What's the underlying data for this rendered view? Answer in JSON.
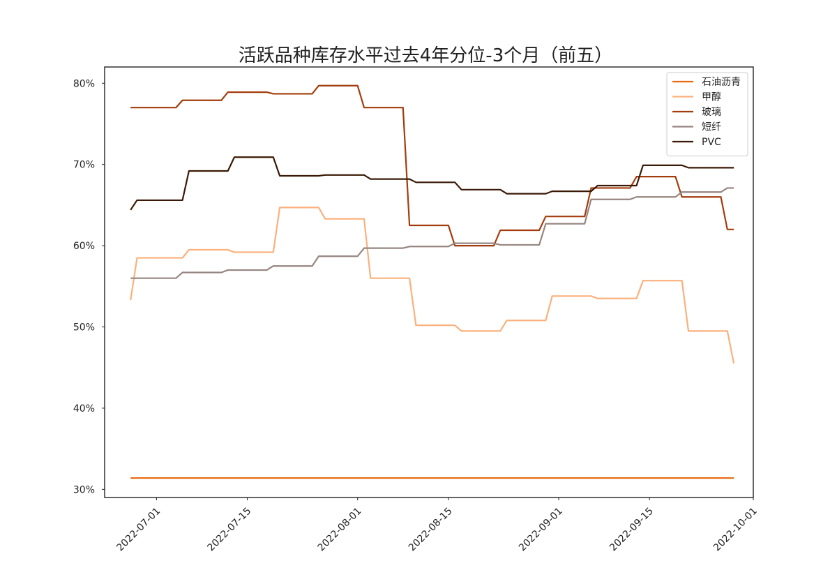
{
  "chart_data": {
    "type": "line",
    "title": "活跃品种库存水平过去4年分位-3个月（前五）",
    "xlabel": "",
    "ylabel": "",
    "x_range": [
      "2022-06-23",
      "2022-10-01"
    ],
    "ylim": [
      0.29,
      0.82
    ],
    "x_ticks": [
      {
        "date": "2022-07-01",
        "label": "2022-07-01"
      },
      {
        "date": "2022-07-15",
        "label": "2022-07-15"
      },
      {
        "date": "2022-08-01",
        "label": "2022-08-01"
      },
      {
        "date": "2022-08-15",
        "label": "2022-08-15"
      },
      {
        "date": "2022-09-01",
        "label": "2022-09-01"
      },
      {
        "date": "2022-09-15",
        "label": "2022-09-15"
      },
      {
        "date": "2022-10-01",
        "label": "2022-10-01"
      }
    ],
    "y_ticks": [
      {
        "value": 0.3,
        "label": "30%"
      },
      {
        "value": 0.4,
        "label": "40%"
      },
      {
        "value": 0.5,
        "label": "50%"
      },
      {
        "value": 0.6,
        "label": "60%"
      },
      {
        "value": 0.7,
        "label": "70%"
      },
      {
        "value": 0.8,
        "label": "80%"
      }
    ],
    "grid": false,
    "legend": "top-right",
    "series": [
      {
        "name": "石油沥青",
        "color": "#e86a10",
        "points": [
          [
            "2022-06-27",
            0.314
          ],
          [
            "2022-09-28",
            0.314
          ]
        ]
      },
      {
        "name": "甲醇",
        "color": "#fbb07c",
        "points": [
          [
            "2022-06-27",
            0.533
          ],
          [
            "2022-06-28",
            0.585
          ],
          [
            "2022-07-05",
            0.585
          ],
          [
            "2022-07-06",
            0.595
          ],
          [
            "2022-07-12",
            0.595
          ],
          [
            "2022-07-13",
            0.592
          ],
          [
            "2022-07-19",
            0.592
          ],
          [
            "2022-07-20",
            0.647
          ],
          [
            "2022-07-26",
            0.647
          ],
          [
            "2022-07-27",
            0.633
          ],
          [
            "2022-08-02",
            0.633
          ],
          [
            "2022-08-03",
            0.56
          ],
          [
            "2022-08-09",
            0.56
          ],
          [
            "2022-08-10",
            0.502
          ],
          [
            "2022-08-16",
            0.502
          ],
          [
            "2022-08-17",
            0.495
          ],
          [
            "2022-08-23",
            0.495
          ],
          [
            "2022-08-24",
            0.508
          ],
          [
            "2022-08-30",
            0.508
          ],
          [
            "2022-08-31",
            0.538
          ],
          [
            "2022-09-06",
            0.538
          ],
          [
            "2022-09-07",
            0.535
          ],
          [
            "2022-09-13",
            0.535
          ],
          [
            "2022-09-14",
            0.557
          ],
          [
            "2022-09-20",
            0.557
          ],
          [
            "2022-09-21",
            0.495
          ],
          [
            "2022-09-27",
            0.495
          ],
          [
            "2022-09-28",
            0.455
          ]
        ]
      },
      {
        "name": "玻璃",
        "color": "#a23c0c",
        "points": [
          [
            "2022-06-27",
            0.77
          ],
          [
            "2022-07-04",
            0.77
          ],
          [
            "2022-07-05",
            0.779
          ],
          [
            "2022-07-11",
            0.779
          ],
          [
            "2022-07-12",
            0.789
          ],
          [
            "2022-07-18",
            0.789
          ],
          [
            "2022-07-19",
            0.787
          ],
          [
            "2022-07-25",
            0.787
          ],
          [
            "2022-07-26",
            0.797
          ],
          [
            "2022-08-01",
            0.797
          ],
          [
            "2022-08-02",
            0.77
          ],
          [
            "2022-08-08",
            0.77
          ],
          [
            "2022-08-09",
            0.625
          ],
          [
            "2022-08-15",
            0.625
          ],
          [
            "2022-08-16",
            0.6
          ],
          [
            "2022-08-22",
            0.6
          ],
          [
            "2022-08-23",
            0.619
          ],
          [
            "2022-08-29",
            0.619
          ],
          [
            "2022-08-30",
            0.636
          ],
          [
            "2022-09-05",
            0.636
          ],
          [
            "2022-09-06",
            0.671
          ],
          [
            "2022-09-12",
            0.671
          ],
          [
            "2022-09-13",
            0.685
          ],
          [
            "2022-09-19",
            0.685
          ],
          [
            "2022-09-20",
            0.66
          ],
          [
            "2022-09-26",
            0.66
          ],
          [
            "2022-09-27",
            0.62
          ],
          [
            "2022-09-28",
            0.62
          ]
        ]
      },
      {
        "name": "短纤",
        "color": "#968580",
        "points": [
          [
            "2022-06-27",
            0.56
          ],
          [
            "2022-07-04",
            0.56
          ],
          [
            "2022-07-05",
            0.567
          ],
          [
            "2022-07-11",
            0.567
          ],
          [
            "2022-07-12",
            0.57
          ],
          [
            "2022-07-18",
            0.57
          ],
          [
            "2022-07-19",
            0.575
          ],
          [
            "2022-07-25",
            0.575
          ],
          [
            "2022-07-26",
            0.587
          ],
          [
            "2022-08-01",
            0.587
          ],
          [
            "2022-08-02",
            0.597
          ],
          [
            "2022-08-08",
            0.597
          ],
          [
            "2022-08-09",
            0.599
          ],
          [
            "2022-08-15",
            0.599
          ],
          [
            "2022-08-16",
            0.603
          ],
          [
            "2022-08-22",
            0.603
          ],
          [
            "2022-08-23",
            0.601
          ],
          [
            "2022-08-29",
            0.601
          ],
          [
            "2022-08-30",
            0.627
          ],
          [
            "2022-09-05",
            0.627
          ],
          [
            "2022-09-06",
            0.657
          ],
          [
            "2022-09-12",
            0.657
          ],
          [
            "2022-09-13",
            0.66
          ],
          [
            "2022-09-19",
            0.66
          ],
          [
            "2022-09-20",
            0.666
          ],
          [
            "2022-09-26",
            0.666
          ],
          [
            "2022-09-27",
            0.671
          ],
          [
            "2022-09-28",
            0.671
          ]
        ]
      },
      {
        "name": "PVC",
        "color": "#3a1a06",
        "points": [
          [
            "2022-06-27",
            0.644
          ],
          [
            "2022-06-28",
            0.656
          ],
          [
            "2022-07-05",
            0.656
          ],
          [
            "2022-07-06",
            0.692
          ],
          [
            "2022-07-12",
            0.692
          ],
          [
            "2022-07-13",
            0.709
          ],
          [
            "2022-07-19",
            0.709
          ],
          [
            "2022-07-20",
            0.686
          ],
          [
            "2022-07-26",
            0.686
          ],
          [
            "2022-07-27",
            0.687
          ],
          [
            "2022-08-02",
            0.687
          ],
          [
            "2022-08-03",
            0.682
          ],
          [
            "2022-08-09",
            0.682
          ],
          [
            "2022-08-10",
            0.678
          ],
          [
            "2022-08-16",
            0.678
          ],
          [
            "2022-08-17",
            0.669
          ],
          [
            "2022-08-23",
            0.669
          ],
          [
            "2022-08-24",
            0.664
          ],
          [
            "2022-08-30",
            0.664
          ],
          [
            "2022-08-31",
            0.667
          ],
          [
            "2022-09-06",
            0.667
          ],
          [
            "2022-09-07",
            0.674
          ],
          [
            "2022-09-13",
            0.674
          ],
          [
            "2022-09-14",
            0.699
          ],
          [
            "2022-09-20",
            0.699
          ],
          [
            "2022-09-21",
            0.696
          ],
          [
            "2022-09-28",
            0.696
          ]
        ]
      }
    ]
  }
}
